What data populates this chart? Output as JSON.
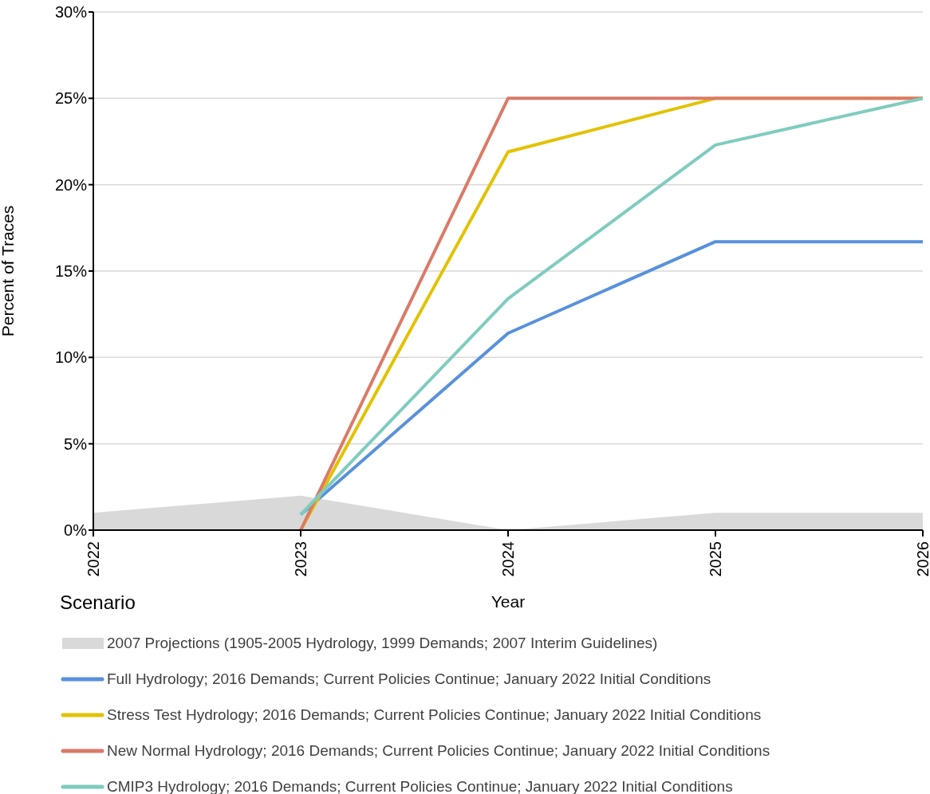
{
  "chart_data": {
    "type": "line",
    "xlabel": "Year",
    "ylabel": "Percent of Traces",
    "legend_title": "Scenario",
    "x": [
      2022,
      2023,
      2024,
      2025,
      2026
    ],
    "xlim": [
      2022,
      2026
    ],
    "xticks": [
      2022,
      2023,
      2024,
      2025,
      2026
    ],
    "ylim": [
      0,
      30
    ],
    "yticks": [
      {
        "value": 0,
        "label": "0%"
      },
      {
        "value": 5,
        "label": "5%"
      },
      {
        "value": 10,
        "label": "10%"
      },
      {
        "value": 15,
        "label": "15%"
      },
      {
        "value": 20,
        "label": "20%"
      },
      {
        "value": 25,
        "label": "25%"
      },
      {
        "value": 30,
        "label": "30%"
      }
    ],
    "series": [
      {
        "name": "2007 Projections (1905-2005 Hydrology, 1999 Demands; 2007 Interim Guidelines)",
        "type": "area",
        "color": "#d9d9d9",
        "values": [
          1,
          2,
          0,
          1,
          1
        ]
      },
      {
        "name": "Full Hydrology; 2016 Demands; Current Policies Continue; January 2022 Initial Conditions",
        "color": "#5891dc",
        "values": [
          null,
          0.9,
          11.4,
          16.7,
          16.7
        ]
      },
      {
        "name": "Stress Test Hydrology; 2016 Demands; Current Policies Continue; January 2022 Initial Conditions",
        "color": "#e2c200",
        "values": [
          null,
          0,
          21.9,
          25,
          25
        ]
      },
      {
        "name": "New Normal Hydrology; 2016 Demands; Current Policies Continue; January 2022 Initial Conditions",
        "color": "#db7a68",
        "values": [
          null,
          0,
          25,
          25,
          25
        ]
      },
      {
        "name": "CMIP3 Hydrology; 2016 Demands; Current Policies Continue; January 2022 Initial Conditions",
        "color": "#7fccbf",
        "values": [
          null,
          0.9,
          13.4,
          22.3,
          25
        ]
      }
    ],
    "grid": "y",
    "legend": "bottom",
    "line_style": "solid"
  }
}
